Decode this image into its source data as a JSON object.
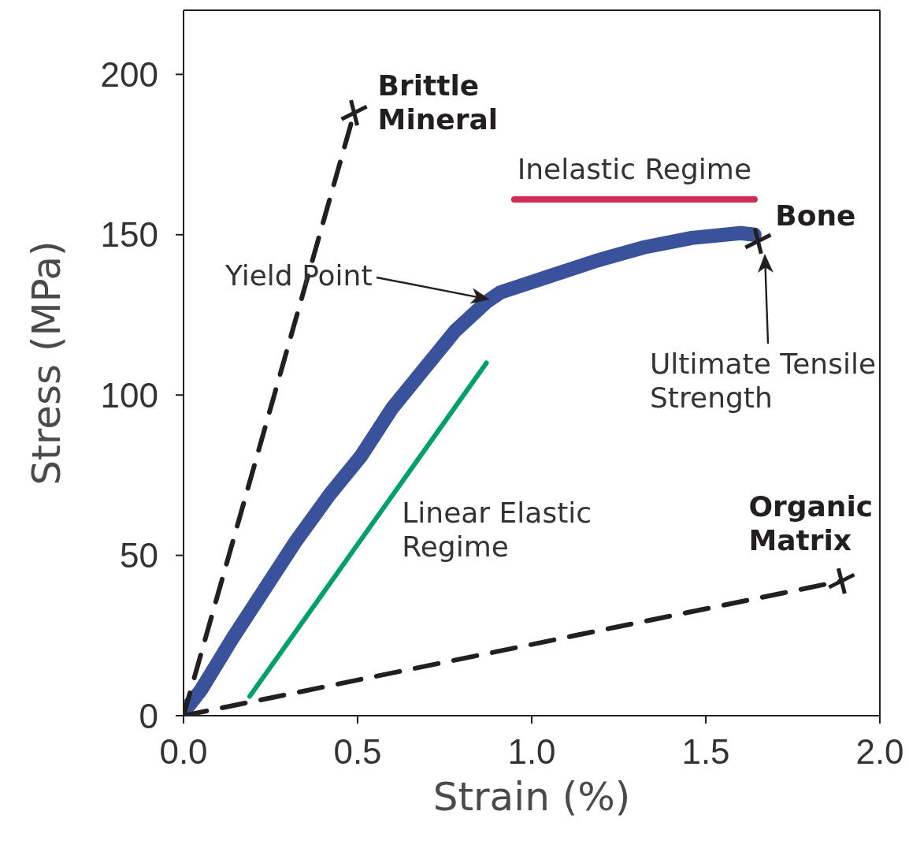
{
  "chart_data": {
    "type": "line",
    "xlabel": "Strain (%)",
    "ylabel": "Stress (MPa)",
    "xlim": [
      0,
      2
    ],
    "xticks": [
      {
        "value": 0,
        "label": "0.0"
      },
      {
        "value": 0.5,
        "label": "0.5"
      },
      {
        "value": 1,
        "label": "1.0"
      },
      {
        "value": 1.5,
        "label": "1.5"
      },
      {
        "value": 2,
        "label": "2.0"
      }
    ],
    "ylim": [
      0,
      220
    ],
    "yticks": [
      0,
      50,
      100,
      150,
      200
    ],
    "marker": "none",
    "grid": false,
    "series": [
      {
        "color": "#3a529b",
        "line_style": "solid",
        "x": [
          0,
          0.05,
          0.14,
          0.23,
          0.32,
          0.42,
          0.51,
          0.6,
          0.69,
          0.78,
          0.87,
          0.91,
          1.05,
          1.19,
          1.32,
          1.46,
          1.6,
          1.64
        ],
        "values": [
          1,
          8,
          24,
          39,
          54,
          69,
          81,
          96,
          108,
          120,
          129,
          132,
          137,
          142,
          146,
          149,
          150.5,
          150
        ]
      },
      {
        "color": "#231f20",
        "line_style": "dashed",
        "x": [
          0,
          0.49
        ],
        "values": [
          0,
          188
        ]
      },
      {
        "color": "#231f20",
        "line_style": "dashed",
        "x": [
          0,
          1.89
        ],
        "values": [
          0,
          42
        ]
      },
      {
        "color": "#00a06b",
        "line_style": "solid",
        "x": [
          0.19,
          0.87
        ],
        "values": [
          6,
          110
        ]
      },
      {
        "color": "#d02c54",
        "line_style": "solid",
        "x": [
          0.95,
          1.64
        ],
        "values": [
          161,
          161
        ]
      },
      {
        "type": "scatter",
        "color": "#231f20",
        "marker": "cross",
        "x": [
          0.49,
          1.65,
          1.89
        ],
        "values": [
          188,
          148,
          42
        ]
      }
    ],
    "annotations": [
      {
        "text": "Brittle\nMineral",
        "x": 0.49,
        "y": 188
      },
      {
        "text": "Bone",
        "x": 1.65,
        "y": 148
      },
      {
        "text": "Organic\nMatrix",
        "x": 1.89,
        "y": 42
      },
      {
        "text": "Linear Elastic\nRegime",
        "x": 0.53,
        "y": 58
      },
      {
        "text": "Inelastic Regime",
        "x": 1.295,
        "y": 161
      },
      "Yield Point",
      "Ultimate Tensile\nStrength"
    ]
  }
}
